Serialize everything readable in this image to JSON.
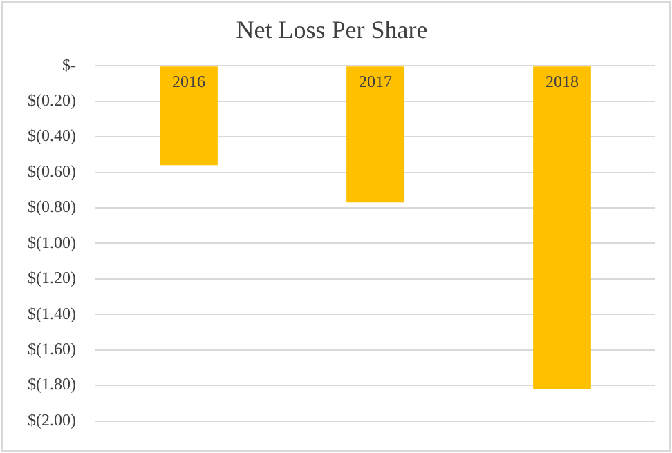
{
  "chart_data": {
    "type": "bar",
    "title": "Net Loss Per Share",
    "categories": [
      "2016",
      "2017",
      "2018"
    ],
    "values": [
      -0.56,
      -0.77,
      -1.82
    ],
    "color": "#ffc000",
    "ylim": [
      -2,
      0
    ],
    "yticks": [
      {
        "value": 0,
        "label": "$-"
      },
      {
        "value": -0.2,
        "label": "$(0.20)"
      },
      {
        "value": -0.4,
        "label": "$(0.40)"
      },
      {
        "value": -0.6,
        "label": "$(0.60)"
      },
      {
        "value": -0.8,
        "label": "$(0.80)"
      },
      {
        "value": -1,
        "label": "$(1.00)"
      },
      {
        "value": -1.2,
        "label": "$(1.20)"
      },
      {
        "value": -1.4,
        "label": "$(1.40)"
      },
      {
        "value": -1.6,
        "label": "$(1.60)"
      },
      {
        "value": -1.8,
        "label": "$(1.80)"
      },
      {
        "value": -2,
        "label": "$(2.00)"
      }
    ],
    "grid": "y"
  }
}
